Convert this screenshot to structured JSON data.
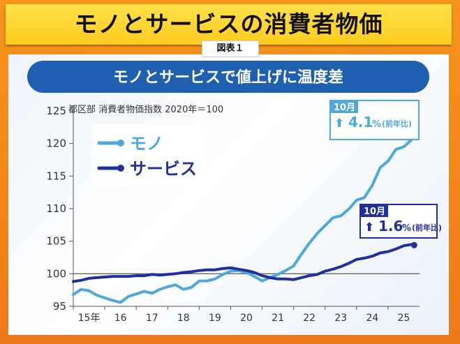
{
  "header": {
    "title": "モノとサービスの消費者物価",
    "figure_label": "図表１"
  },
  "chart_data": {
    "type": "line",
    "title": "モノとサービスで値上げに温度差",
    "subtitle": "都区部 消費者物価指数 2020年＝100",
    "ylim": [
      95,
      125
    ],
    "y_ticks": [
      "125",
      "120",
      "115",
      "110",
      "105",
      "100",
      "95"
    ],
    "xlim": [
      2015,
      2026
    ],
    "x_ticks": [
      "15年",
      "16",
      "17",
      "18",
      "19",
      "20",
      "21",
      "22",
      "23",
      "24",
      "25"
    ],
    "reference_line": 100,
    "grid": false,
    "legend": "top-left",
    "series": [
      {
        "name": "モノ",
        "color": "#4da8de",
        "x": [
          2015.0,
          2015.25,
          2015.5,
          2015.75,
          2016.0,
          2016.25,
          2016.5,
          2016.75,
          2017.0,
          2017.25,
          2017.5,
          2017.75,
          2018.0,
          2018.25,
          2018.5,
          2018.75,
          2019.0,
          2019.25,
          2019.5,
          2019.75,
          2020.0,
          2020.25,
          2020.5,
          2020.75,
          2021.0,
          2021.25,
          2021.5,
          2021.75,
          2022.0,
          2022.25,
          2022.5,
          2022.75,
          2023.0,
          2023.25,
          2023.5,
          2023.75,
          2024.0,
          2024.25,
          2024.5,
          2024.75,
          2025.0,
          2025.25,
          2025.5,
          2025.75,
          2025.83
        ],
        "values": [
          96.8,
          97.6,
          97.4,
          96.7,
          96.3,
          95.9,
          95.6,
          96.5,
          96.9,
          97.3,
          97.0,
          97.6,
          98.0,
          98.3,
          97.6,
          97.9,
          98.9,
          98.9,
          99.2,
          99.9,
          100.4,
          100.5,
          100.2,
          99.6,
          98.9,
          99.4,
          99.9,
          100.5,
          101.2,
          103.0,
          104.7,
          106.2,
          107.4,
          108.6,
          108.9,
          109.9,
          111.3,
          111.7,
          113.6,
          116.3,
          117.3,
          119.1,
          119.5,
          120.6,
          121.9
        ]
      },
      {
        "name": "サービス",
        "color": "#1f2f9e",
        "x": [
          2015.0,
          2015.25,
          2015.5,
          2015.75,
          2016.0,
          2016.25,
          2016.5,
          2016.75,
          2017.0,
          2017.25,
          2017.5,
          2017.75,
          2018.0,
          2018.25,
          2018.5,
          2018.75,
          2019.0,
          2019.25,
          2019.5,
          2019.75,
          2020.0,
          2020.25,
          2020.5,
          2020.75,
          2021.0,
          2021.25,
          2021.5,
          2021.75,
          2022.0,
          2022.25,
          2022.5,
          2022.75,
          2023.0,
          2023.25,
          2023.5,
          2023.75,
          2024.0,
          2024.25,
          2024.5,
          2024.75,
          2025.0,
          2025.25,
          2025.5,
          2025.75,
          2025.83
        ],
        "values": [
          98.8,
          99.0,
          99.3,
          99.4,
          99.5,
          99.6,
          99.6,
          99.6,
          99.7,
          99.7,
          99.9,
          99.8,
          99.9,
          100.0,
          100.2,
          100.3,
          100.5,
          100.6,
          100.6,
          100.8,
          100.9,
          100.7,
          100.5,
          100.2,
          99.7,
          99.4,
          99.2,
          99.2,
          99.1,
          99.4,
          99.7,
          99.9,
          100.4,
          100.7,
          101.1,
          101.6,
          102.2,
          102.4,
          102.7,
          103.2,
          103.4,
          103.8,
          104.3,
          104.5,
          104.4
        ]
      }
    ],
    "legend_entries": [
      "モノ",
      "サービス"
    ],
    "annotations": [
      {
        "series": "モノ",
        "month": "10月",
        "value": "4.1",
        "unit": "%",
        "note": "(前年比)"
      },
      {
        "series": "サービス",
        "month": "10月",
        "value": "1.6",
        "unit": "%",
        "note": "(前年比)"
      }
    ]
  }
}
